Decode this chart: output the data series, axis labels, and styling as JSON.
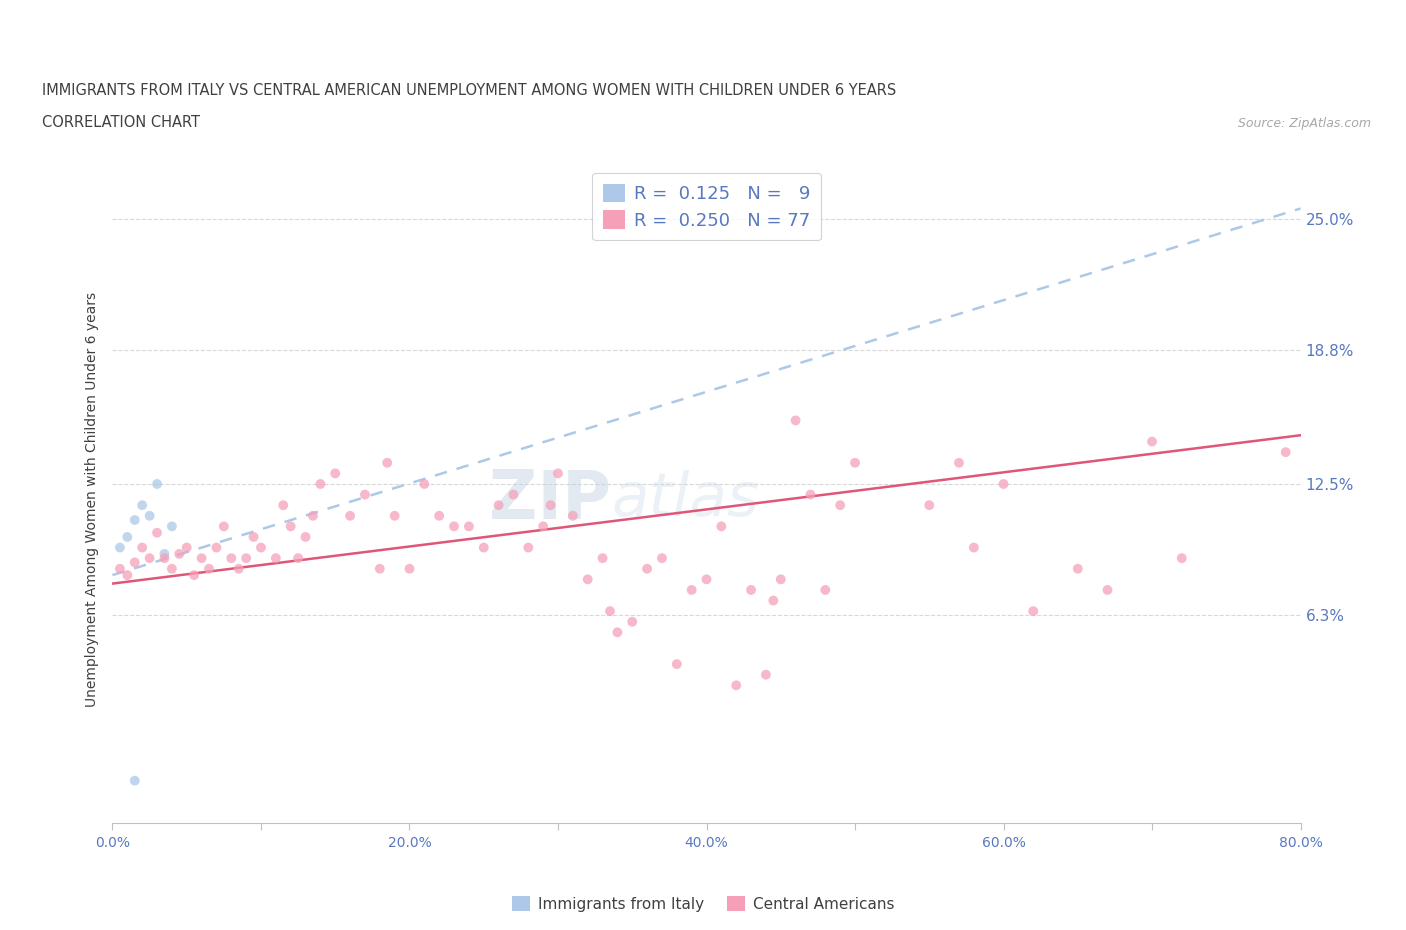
{
  "title_line1": "IMMIGRANTS FROM ITALY VS CENTRAL AMERICAN UNEMPLOYMENT AMONG WOMEN WITH CHILDREN UNDER 6 YEARS",
  "title_line2": "CORRELATION CHART",
  "source_text": "Source: ZipAtlas.com",
  "ylabel": "Unemployment Among Women with Children Under 6 years",
  "watermark_zip": "ZIP",
  "watermark_atlas": "atlas",
  "xlim": [
    0.0,
    80.0
  ],
  "ylim": [
    -3.5,
    27.0
  ],
  "right_ytick_vals": [
    6.3,
    12.5,
    18.8,
    25.0
  ],
  "right_ytick_labels": [
    "6.3%",
    "12.5%",
    "18.8%",
    "25.0%"
  ],
  "xticks": [
    0.0,
    10.0,
    20.0,
    30.0,
    40.0,
    50.0,
    60.0,
    70.0,
    80.0
  ],
  "xtick_labels": [
    "0.0%",
    "",
    "20.0%",
    "",
    "40.0%",
    "",
    "60.0%",
    "",
    "80.0%"
  ],
  "legend_r1": "R=  0.125   N=  9",
  "legend_r2": "R=  0.250   N= 77",
  "italy_color": "#adc8e8",
  "italy_scatter_x": [
    0.5,
    1.0,
    1.5,
    2.0,
    2.5,
    3.0,
    3.5,
    4.0,
    1.5
  ],
  "italy_scatter_y": [
    9.5,
    10.0,
    10.8,
    11.5,
    11.0,
    12.5,
    9.2,
    10.5,
    -1.5
  ],
  "italy_trend_x": [
    0.0,
    80.0
  ],
  "italy_trend_y": [
    8.2,
    25.5
  ],
  "italy_trend_color": "#adc8e8",
  "central_color": "#f5a0b8",
  "central_scatter_x": [
    0.5,
    1.0,
    1.5,
    2.0,
    2.5,
    3.0,
    3.5,
    4.0,
    4.5,
    5.0,
    5.5,
    6.0,
    6.5,
    7.0,
    7.5,
    8.0,
    8.5,
    9.0,
    9.5,
    10.0,
    11.0,
    11.5,
    12.0,
    12.5,
    13.0,
    13.5,
    14.0,
    15.0,
    16.0,
    17.0,
    18.0,
    18.5,
    19.0,
    20.0,
    21.0,
    22.0,
    23.0,
    24.0,
    25.0,
    26.0,
    27.0,
    28.0,
    29.0,
    29.5,
    30.0,
    31.0,
    32.0,
    33.0,
    33.5,
    34.0,
    35.0,
    36.0,
    37.0,
    38.0,
    39.0,
    40.0,
    41.0,
    42.0,
    43.0,
    44.0,
    44.5,
    45.0,
    46.0,
    47.0,
    48.0,
    49.0,
    50.0,
    55.0,
    57.0,
    58.0,
    60.0,
    62.0,
    65.0,
    67.0,
    70.0,
    72.0,
    79.0
  ],
  "central_scatter_y": [
    8.5,
    8.2,
    8.8,
    9.5,
    9.0,
    10.2,
    9.0,
    8.5,
    9.2,
    9.5,
    8.2,
    9.0,
    8.5,
    9.5,
    10.5,
    9.0,
    8.5,
    9.0,
    10.0,
    9.5,
    9.0,
    11.5,
    10.5,
    9.0,
    10.0,
    11.0,
    12.5,
    13.0,
    11.0,
    12.0,
    8.5,
    13.5,
    11.0,
    8.5,
    12.5,
    11.0,
    10.5,
    10.5,
    9.5,
    11.5,
    12.0,
    9.5,
    10.5,
    11.5,
    13.0,
    11.0,
    8.0,
    9.0,
    6.5,
    5.5,
    6.0,
    8.5,
    9.0,
    4.0,
    7.5,
    8.0,
    10.5,
    3.0,
    7.5,
    3.5,
    7.0,
    8.0,
    15.5,
    12.0,
    7.5,
    11.5,
    13.5,
    11.5,
    13.5,
    9.5,
    12.5,
    6.5,
    8.5,
    7.5,
    14.5,
    9.0,
    14.0
  ],
  "central_trend_x": [
    0.0,
    80.0
  ],
  "central_trend_y": [
    7.8,
    14.8
  ],
  "central_trend_color": "#e05578",
  "background_color": "#ffffff",
  "grid_color": "#d8d8d8",
  "title_color": "#404040",
  "tick_color": "#5878c0",
  "source_color": "#a8a8a8",
  "scatter_size": 50,
  "scatter_alpha": 0.75,
  "trend_linewidth": 1.8
}
